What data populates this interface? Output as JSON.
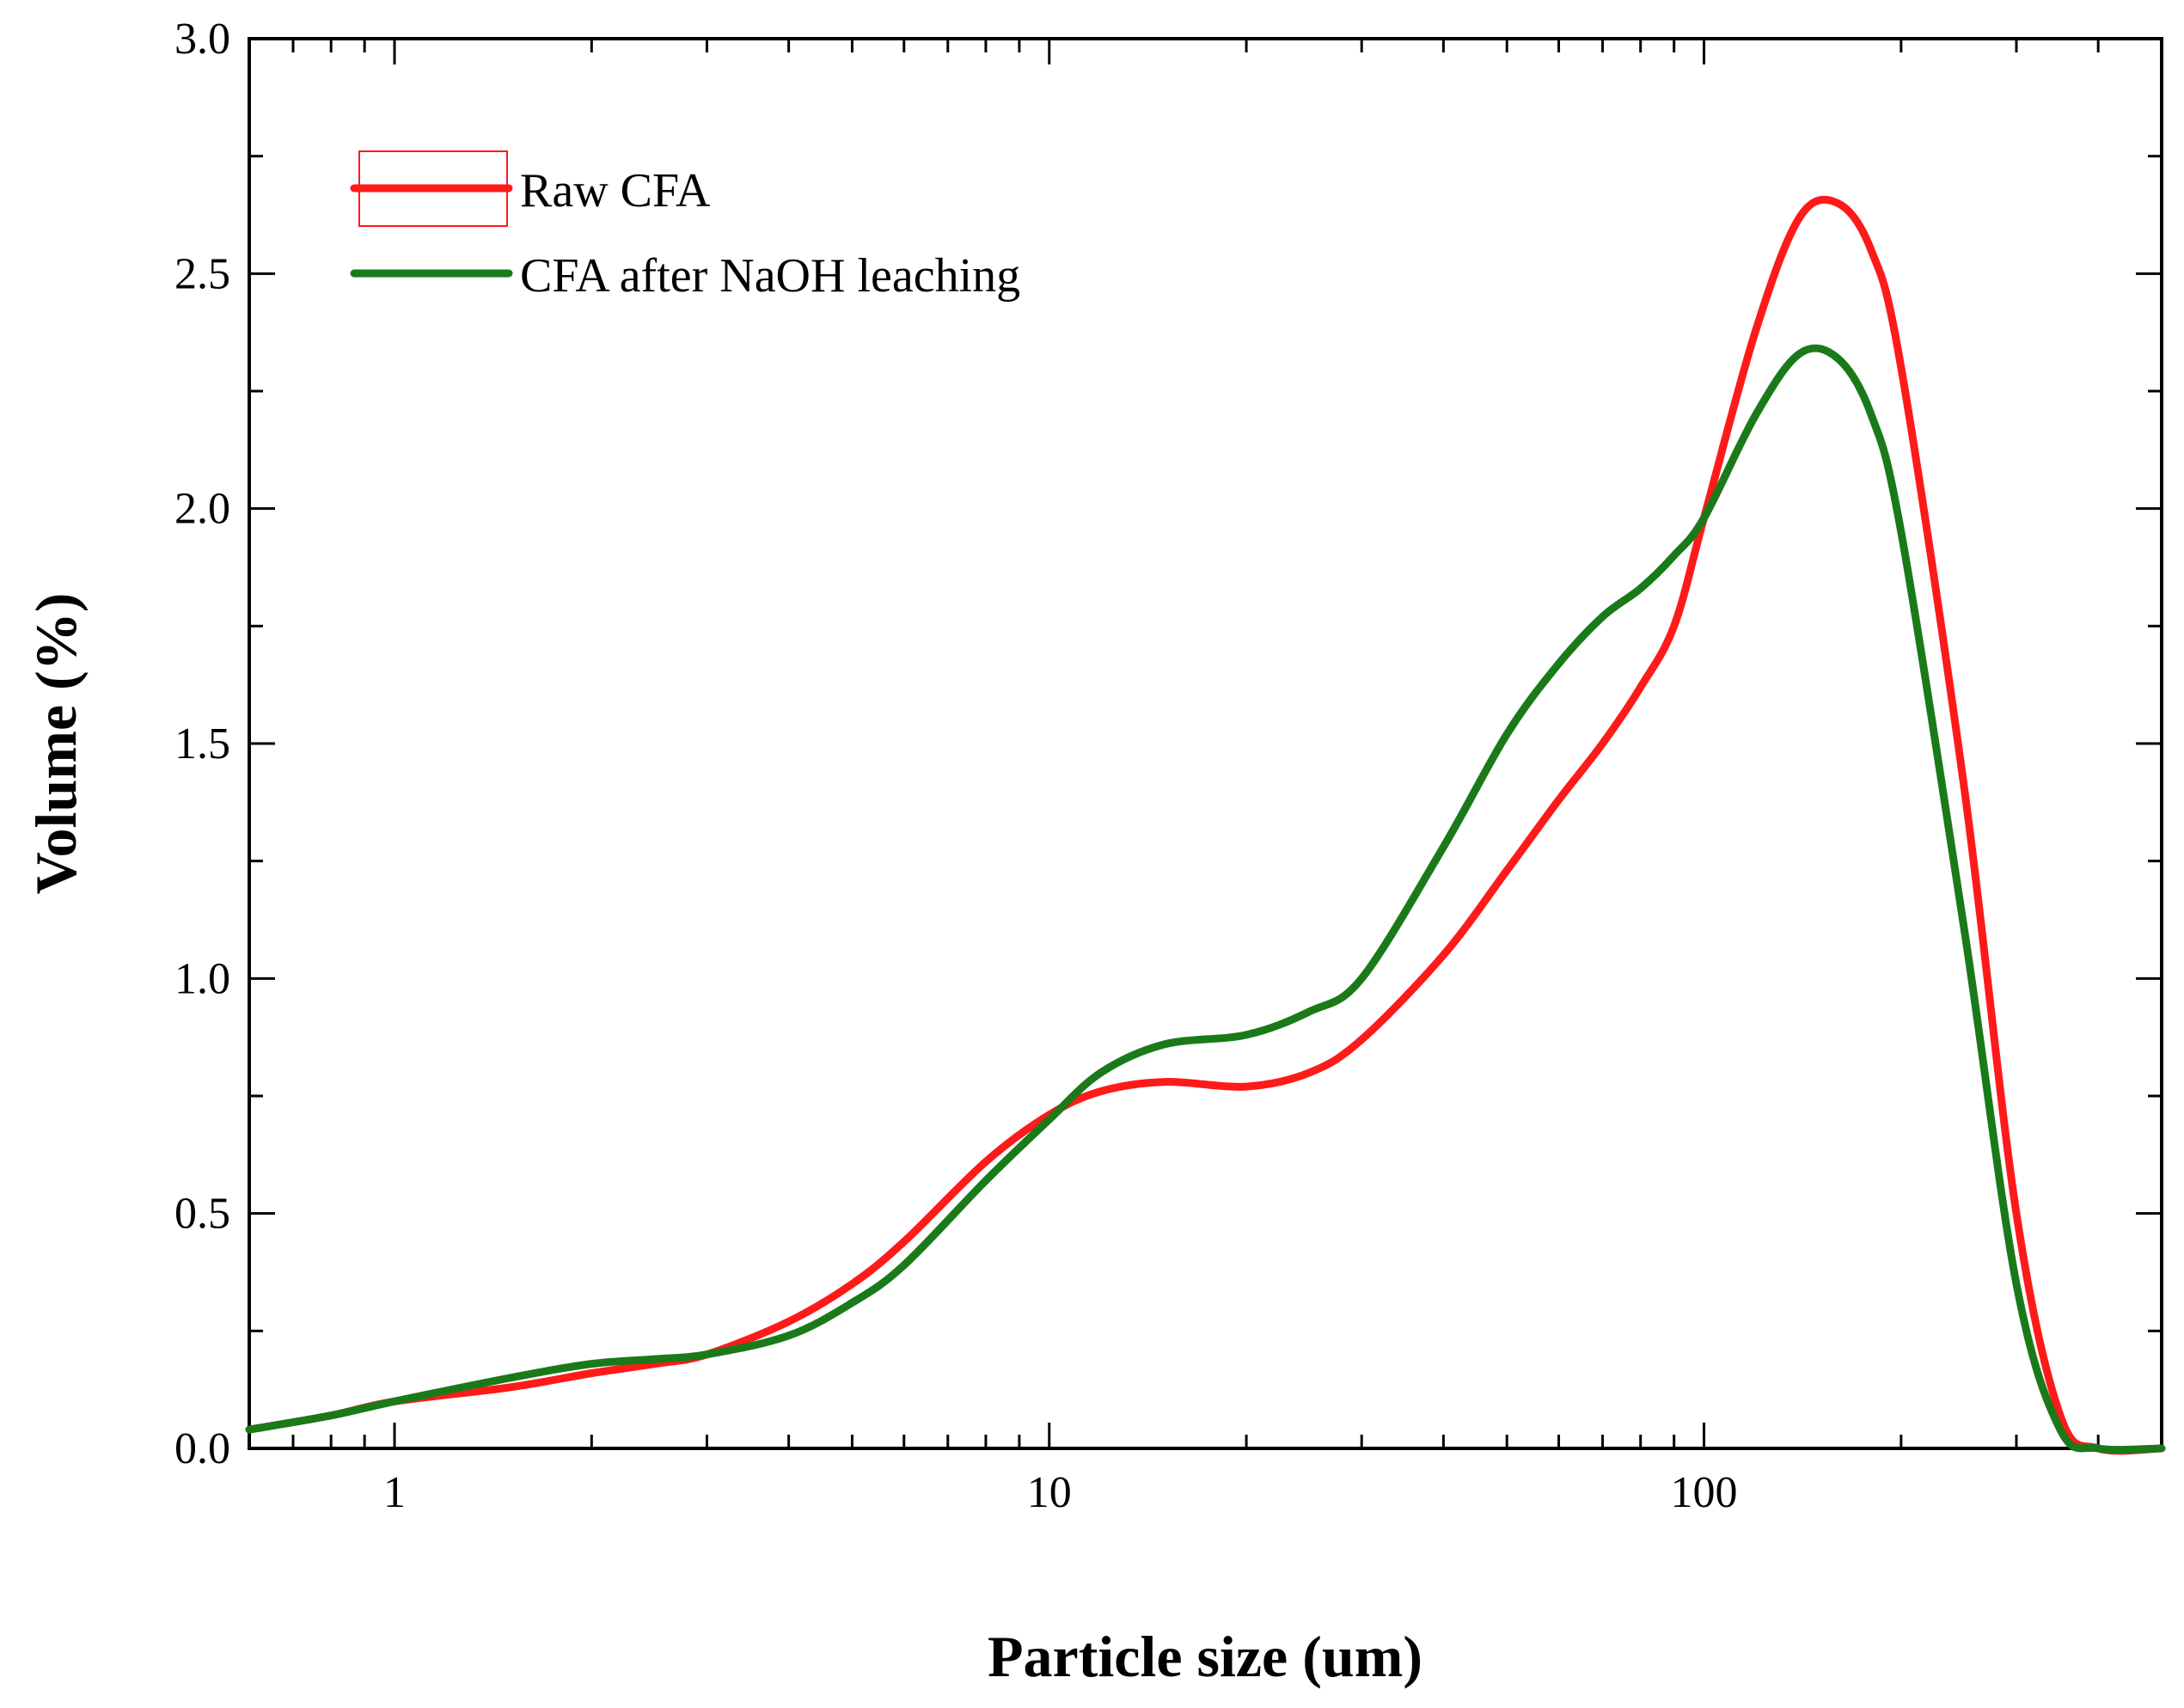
{
  "chart_data": {
    "type": "line",
    "title": "",
    "xlabel": "Particle size (um)",
    "ylabel": "Volume (%)",
    "xscale": "log",
    "xlim": [
      0.6,
      500
    ],
    "ylim": [
      0,
      3.0
    ],
    "xticks": [
      {
        "value": 1,
        "label": "1"
      },
      {
        "value": 10,
        "label": "10"
      },
      {
        "value": 100,
        "label": "100"
      }
    ],
    "yticks": [
      {
        "value": 0.0,
        "label": "0.0"
      },
      {
        "value": 0.5,
        "label": "0.5"
      },
      {
        "value": 1.0,
        "label": "1.0"
      },
      {
        "value": 1.5,
        "label": "1.5"
      },
      {
        "value": 2.0,
        "label": "2.0"
      },
      {
        "value": 2.5,
        "label": "2.5"
      },
      {
        "value": 3.0,
        "label": "3.0"
      }
    ],
    "legend_position": "top-left",
    "series": [
      {
        "name": "Raw CFA",
        "color": "#ff1a1a",
        "x": [
          0.6,
          0.8,
          1,
          1.5,
          2,
          2.5,
          3,
          4,
          5,
          6,
          8,
          10,
          12,
          15,
          20,
          25,
          30,
          40,
          50,
          60,
          70,
          80,
          90,
          100,
          120,
          140,
          160,
          180,
          200,
          250,
          300,
          350,
          400,
          500
        ],
        "y": [
          0.04,
          0.07,
          0.1,
          0.13,
          0.16,
          0.18,
          0.2,
          0.27,
          0.35,
          0.44,
          0.61,
          0.71,
          0.76,
          0.78,
          0.77,
          0.8,
          0.87,
          1.05,
          1.23,
          1.38,
          1.5,
          1.62,
          1.75,
          1.98,
          2.38,
          2.62,
          2.65,
          2.55,
          2.3,
          1.4,
          0.5,
          0.07,
          0.0,
          0.0
        ]
      },
      {
        "name": "CFA after NaOH leaching",
        "color": "#1a7a1a",
        "x": [
          0.6,
          0.8,
          1,
          1.5,
          2,
          2.5,
          3,
          4,
          5,
          6,
          8,
          10,
          12,
          15,
          20,
          25,
          30,
          40,
          50,
          60,
          70,
          80,
          90,
          100,
          120,
          140,
          160,
          180,
          200,
          250,
          300,
          350,
          400,
          500
        ],
        "y": [
          0.04,
          0.07,
          0.1,
          0.15,
          0.18,
          0.19,
          0.2,
          0.24,
          0.31,
          0.39,
          0.57,
          0.7,
          0.8,
          0.86,
          0.88,
          0.93,
          1.0,
          1.28,
          1.52,
          1.67,
          1.77,
          1.83,
          1.9,
          1.98,
          2.2,
          2.33,
          2.32,
          2.2,
          1.95,
          1.1,
          0.35,
          0.04,
          0.0,
          0.0
        ]
      }
    ]
  }
}
